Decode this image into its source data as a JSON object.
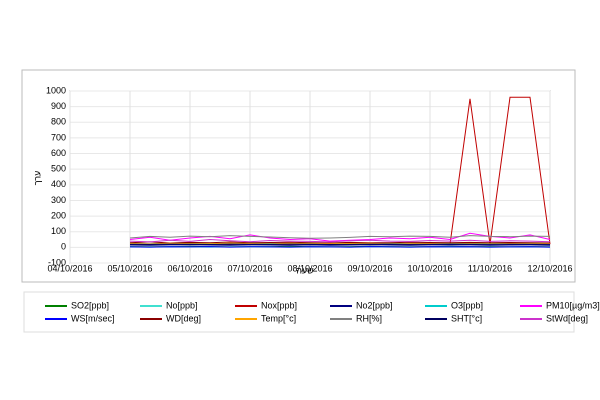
{
  "chart_data": {
    "type": "line",
    "y_label": "ערך",
    "x_label": "שעה",
    "categories": [
      "04/10/2016",
      null,
      null,
      "05/10/2016",
      null,
      null,
      "06/10/2016",
      null,
      null,
      "07/10/2016",
      null,
      null,
      "08/10/2016",
      null,
      null,
      "09/10/2016",
      null,
      null,
      "10/10/2016",
      null,
      null,
      "11/10/2016",
      null,
      null,
      "12/10/2016"
    ],
    "ylim": [
      -100,
      1000
    ],
    "yticks": [
      -100,
      0,
      100,
      200,
      300,
      400,
      500,
      600,
      700,
      800,
      900,
      1000
    ],
    "grid": true,
    "series": [
      {
        "name": "SO2[ppb]",
        "color": "#008000",
        "values": [
          null,
          null,
          null,
          5,
          4,
          5,
          6,
          5,
          4,
          5,
          5,
          6,
          5,
          4,
          5,
          6,
          5,
          4,
          5,
          6,
          5,
          5,
          4,
          5,
          4
        ]
      },
      {
        "name": "No[ppb]",
        "color": "#40e0d0",
        "values": [
          null,
          null,
          null,
          3,
          2,
          4,
          3,
          2,
          3,
          4,
          3,
          2,
          3,
          3,
          2,
          4,
          3,
          2,
          3,
          4,
          3,
          2,
          3,
          3,
          2
        ]
      },
      {
        "name": "Nox[ppb]",
        "color": "#c00000",
        "values": [
          null,
          null,
          null,
          20,
          18,
          22,
          25,
          20,
          18,
          24,
          20,
          19,
          22,
          18,
          20,
          23,
          21,
          19,
          22,
          20,
          950,
          20,
          960,
          960,
          20
        ]
      },
      {
        "name": "No2[ppb]",
        "color": "#000080",
        "values": [
          null,
          null,
          null,
          15,
          14,
          16,
          17,
          15,
          13,
          16,
          15,
          14,
          16,
          13,
          15,
          17,
          15,
          14,
          16,
          15,
          16,
          14,
          15,
          16,
          14
        ]
      },
      {
        "name": "O3[ppb]",
        "color": "#00cccc",
        "values": [
          null,
          null,
          null,
          25,
          22,
          28,
          30,
          26,
          24,
          29,
          27,
          23,
          26,
          25,
          24,
          28,
          26,
          23,
          27,
          25,
          26,
          24,
          27,
          25,
          23
        ]
      },
      {
        "name": "PM10[µg/m3]",
        "color": "#ff00ff",
        "values": [
          null,
          null,
          null,
          50,
          65,
          45,
          60,
          70,
          55,
          80,
          60,
          50,
          55,
          40,
          45,
          50,
          60,
          55,
          65,
          50,
          90,
          70,
          60,
          80,
          50
        ]
      },
      {
        "name": "WS[m/sec]",
        "color": "#0000ff",
        "values": [
          null,
          null,
          null,
          3,
          2,
          4,
          3,
          5,
          2,
          4,
          3,
          2,
          4,
          3,
          2,
          5,
          3,
          2,
          4,
          3,
          4,
          2,
          3,
          4,
          2
        ]
      },
      {
        "name": "WD[deg]",
        "color": "#8b0000",
        "values": [
          null,
          null,
          null,
          30,
          35,
          28,
          32,
          30,
          34,
          29,
          31,
          33,
          30,
          28,
          32,
          30,
          29,
          33,
          31,
          30,
          32,
          29,
          31,
          30,
          28
        ]
      },
      {
        "name": "Temp[°c]",
        "color": "#ffa500",
        "values": [
          null,
          null,
          null,
          25,
          22,
          26,
          24,
          23,
          27,
          25,
          22,
          26,
          24,
          23,
          25,
          26,
          22,
          24,
          25,
          23,
          24,
          22,
          25,
          24,
          23
        ]
      },
      {
        "name": "RH[%]",
        "color": "#808080",
        "values": [
          null,
          null,
          null,
          60,
          70,
          65,
          72,
          68,
          75,
          70,
          66,
          62,
          58,
          60,
          64,
          70,
          68,
          72,
          70,
          65,
          75,
          70,
          68,
          72,
          70
        ]
      },
      {
        "name": "SHT[°c]",
        "color": "#000060",
        "values": [
          null,
          null,
          null,
          20,
          19,
          21,
          20,
          18,
          21,
          20,
          19,
          21,
          20,
          18,
          19,
          21,
          20,
          19,
          20,
          21,
          20,
          19,
          21,
          20,
          19
        ]
      },
      {
        "name": "StWd[deg]",
        "color": "#cc33cc",
        "values": [
          null,
          null,
          null,
          40,
          35,
          45,
          38,
          50,
          42,
          36,
          44,
          40,
          38,
          35,
          42,
          46,
          40,
          38,
          44,
          40,
          45,
          38,
          42,
          40,
          36
        ]
      }
    ]
  }
}
